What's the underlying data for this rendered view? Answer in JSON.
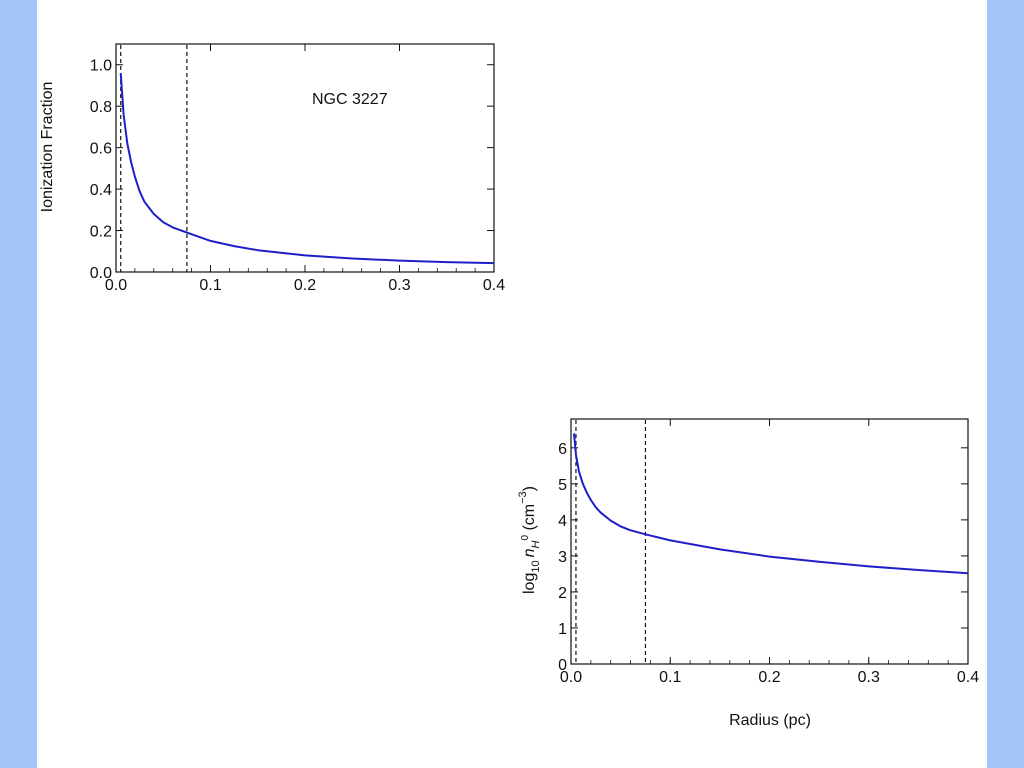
{
  "chart_data": [
    {
      "type": "line",
      "title": "",
      "annotation": "NGC 3227",
      "xlabel": "",
      "ylabel": "Ionization Fraction",
      "xlim": [
        0.0,
        0.4
      ],
      "ylim": [
        0.0,
        1.1
      ],
      "xticks": [
        "0.0",
        "0.1",
        "0.2",
        "0.3",
        "0.4"
      ],
      "yticks": [
        "0.0",
        "0.2",
        "0.4",
        "0.6",
        "0.8",
        "1.0"
      ],
      "vlines": [
        0.005,
        0.075
      ],
      "grid": false,
      "color": "#1f1fc8",
      "series": [
        {
          "x": [
            0.005,
            0.008,
            0.012,
            0.016,
            0.02,
            0.025,
            0.03,
            0.04,
            0.05,
            0.06,
            0.075,
            0.1,
            0.125,
            0.15,
            0.2,
            0.25,
            0.3,
            0.35,
            0.4
          ],
          "y": [
            0.96,
            0.76,
            0.62,
            0.53,
            0.46,
            0.39,
            0.34,
            0.28,
            0.24,
            0.215,
            0.19,
            0.15,
            0.125,
            0.105,
            0.08,
            0.065,
            0.055,
            0.048,
            0.043
          ]
        }
      ]
    },
    {
      "type": "line",
      "title": "",
      "xlabel": "Radius (pc)",
      "ylabel": "log10 nH0 (cm−3)",
      "ylabel_parts": {
        "log": "log",
        "base": "10",
        "n": "n",
        "sub": "H",
        "sup": "0",
        "unit": " (cm",
        "exp": "−3",
        "close": ")"
      },
      "xlim": [
        0.0,
        0.4
      ],
      "ylim": [
        0,
        6.8
      ],
      "xticks": [
        "0.0",
        "0.1",
        "0.2",
        "0.3",
        "0.4"
      ],
      "yticks": [
        "0",
        "1",
        "2",
        "3",
        "4",
        "5",
        "6"
      ],
      "vlines": [
        0.005,
        0.075
      ],
      "grid": false,
      "color": "#1f1fc8",
      "series": [
        {
          "x": [
            0.003,
            0.005,
            0.008,
            0.012,
            0.016,
            0.02,
            0.025,
            0.03,
            0.04,
            0.05,
            0.06,
            0.075,
            0.1,
            0.15,
            0.2,
            0.25,
            0.3,
            0.35,
            0.4
          ],
          "y": [
            6.4,
            5.8,
            5.35,
            5.0,
            4.75,
            4.55,
            4.35,
            4.2,
            3.98,
            3.82,
            3.71,
            3.6,
            3.43,
            3.18,
            2.98,
            2.84,
            2.71,
            2.61,
            2.52
          ]
        }
      ]
    }
  ]
}
